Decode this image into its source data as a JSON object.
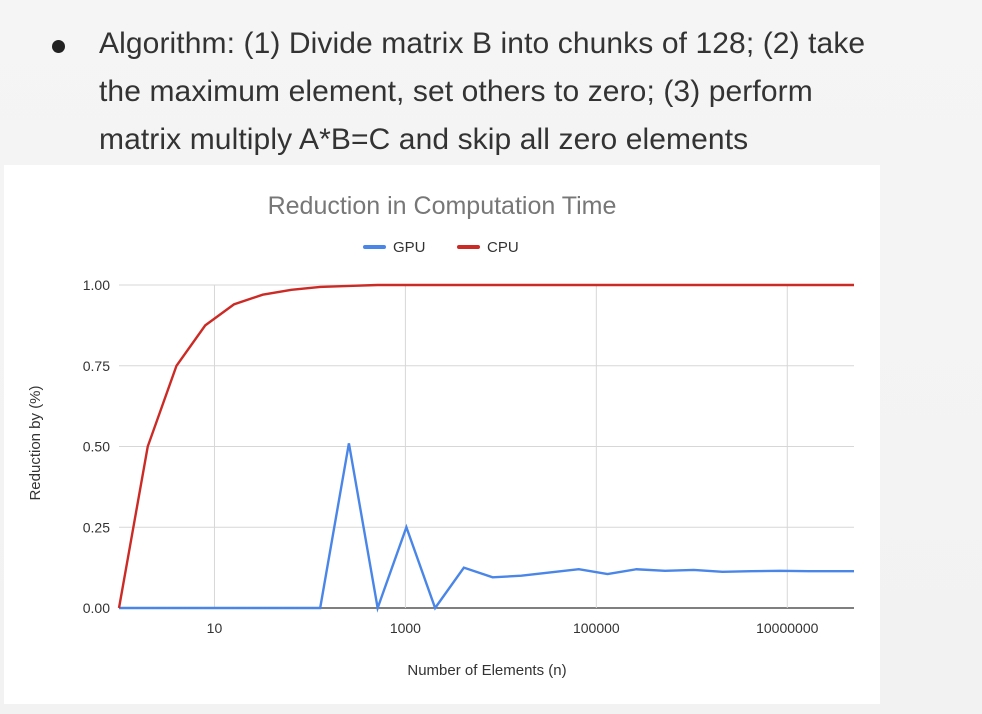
{
  "slide": {
    "bullet_lines": [
      "Algorithm: (1) Divide matrix B into chunks of 128; (2) take",
      "the maximum element, set others to zero; (3) perform",
      "matrix multiply A*B=C and skip all zero elements"
    ]
  },
  "chart_data": {
    "type": "line",
    "title": "Reduction in Computation Time",
    "xlabel": "Number of Elements (n)",
    "ylabel": "Reduction by (%)",
    "x_scale": "log10",
    "xlim": [
      1,
      50000000
    ],
    "ylim": [
      0,
      1
    ],
    "x_ticks": [
      10,
      1000,
      100000,
      10000000
    ],
    "x_tick_labels": [
      "10",
      "1000",
      "100000",
      "10000000"
    ],
    "y_ticks": [
      0,
      0.25,
      0.5,
      0.75,
      1
    ],
    "y_tick_labels": [
      "0.00",
      "0.25",
      "0.50",
      "0.75",
      "1.00"
    ],
    "grid": true,
    "legend_position": "top-center",
    "series": [
      {
        "name": "GPU",
        "color": "#4a86e8",
        "points": [
          [
            1,
            0
          ],
          [
            2,
            0
          ],
          [
            4,
            0
          ],
          [
            8,
            0
          ],
          [
            16,
            0
          ],
          [
            32,
            0
          ],
          [
            64,
            0
          ],
          [
            128,
            0
          ],
          [
            256,
            0.51
          ],
          [
            512,
            0
          ],
          [
            1024,
            0.25
          ],
          [
            2048,
            0
          ],
          [
            4096,
            0.125
          ],
          [
            8192,
            0.095
          ],
          [
            16384,
            0.1
          ],
          [
            32768,
            0.11
          ],
          [
            65536,
            0.12
          ],
          [
            131072,
            0.105
          ],
          [
            262144,
            0.12
          ],
          [
            524288,
            0.115
          ],
          [
            1048576,
            0.118
          ],
          [
            2097152,
            0.112
          ],
          [
            4194304,
            0.114
          ],
          [
            8388608,
            0.115
          ],
          [
            16777216,
            0.114
          ],
          [
            33554432,
            0.114
          ],
          [
            50000000,
            0.114
          ]
        ]
      },
      {
        "name": "CPU",
        "color": "#cc2a25",
        "points": [
          [
            1,
            0
          ],
          [
            2,
            0.5
          ],
          [
            4,
            0.75
          ],
          [
            8,
            0.875
          ],
          [
            16,
            0.94
          ],
          [
            32,
            0.97
          ],
          [
            64,
            0.985
          ],
          [
            128,
            0.994
          ],
          [
            256,
            0.997
          ],
          [
            512,
            1
          ],
          [
            1024,
            1
          ],
          [
            50000000,
            1
          ]
        ]
      }
    ]
  }
}
